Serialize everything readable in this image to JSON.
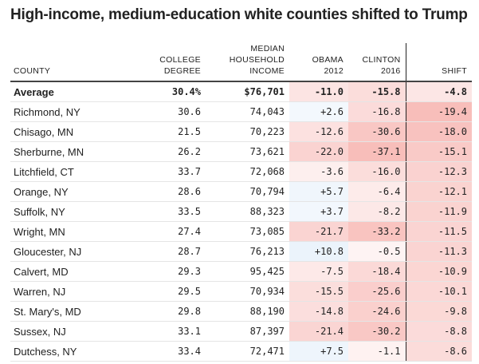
{
  "chart_data": {
    "type": "table",
    "title": "High-income, medium-education white counties shifted to Trump",
    "columns": [
      {
        "key": "county",
        "label": "COUNTY"
      },
      {
        "key": "college",
        "label": "COLLEGE DEGREE"
      },
      {
        "key": "income",
        "label": "MEDIAN HOUSEHOLD INCOME"
      },
      {
        "key": "obama",
        "label": "OBAMA 2012"
      },
      {
        "key": "clinton",
        "label": "CLINTON 2016"
      },
      {
        "key": "shift",
        "label": "SHIFT"
      }
    ],
    "average": {
      "county": "Average",
      "college": "30.4%",
      "income": "$76,701",
      "obama": "-11.0",
      "clinton": "-15.8",
      "shift": "-4.8"
    },
    "rows": [
      {
        "county": "Richmond, NY",
        "college": "30.6",
        "income": "74,043",
        "obama": "+2.6",
        "clinton": "-16.8",
        "shift": "-19.4"
      },
      {
        "county": "Chisago, MN",
        "college": "21.5",
        "income": "70,223",
        "obama": "-12.6",
        "clinton": "-30.6",
        "shift": "-18.0"
      },
      {
        "county": "Sherburne, MN",
        "college": "26.2",
        "income": "73,621",
        "obama": "-22.0",
        "clinton": "-37.1",
        "shift": "-15.1"
      },
      {
        "county": "Litchfield, CT",
        "college": "33.7",
        "income": "72,068",
        "obama": "-3.6",
        "clinton": "-16.0",
        "shift": "-12.3"
      },
      {
        "county": "Orange, NY",
        "college": "28.6",
        "income": "70,794",
        "obama": "+5.7",
        "clinton": "-6.4",
        "shift": "-12.1"
      },
      {
        "county": "Suffolk, NY",
        "college": "33.5",
        "income": "88,323",
        "obama": "+3.7",
        "clinton": "-8.2",
        "shift": "-11.9"
      },
      {
        "county": "Wright, MN",
        "college": "27.4",
        "income": "73,085",
        "obama": "-21.7",
        "clinton": "-33.2",
        "shift": "-11.5"
      },
      {
        "county": "Gloucester, NJ",
        "college": "28.7",
        "income": "76,213",
        "obama": "+10.8",
        "clinton": "-0.5",
        "shift": "-11.3"
      },
      {
        "county": "Calvert, MD",
        "college": "29.3",
        "income": "95,425",
        "obama": "-7.5",
        "clinton": "-18.4",
        "shift": "-10.9"
      },
      {
        "county": "Warren, NJ",
        "college": "29.5",
        "income": "70,934",
        "obama": "-15.5",
        "clinton": "-25.6",
        "shift": "-10.1"
      },
      {
        "county": "St. Mary's, MD",
        "college": "29.8",
        "income": "88,190",
        "obama": "-14.8",
        "clinton": "-24.6",
        "shift": "-9.8"
      },
      {
        "county": "Sussex, NJ",
        "college": "33.1",
        "income": "87,397",
        "obama": "-21.4",
        "clinton": "-30.2",
        "shift": "-8.8"
      },
      {
        "county": "Dutchess, NY",
        "college": "33.4",
        "income": "72,471",
        "obama": "+7.5",
        "clinton": "-1.1",
        "shift": "-8.6"
      }
    ]
  }
}
